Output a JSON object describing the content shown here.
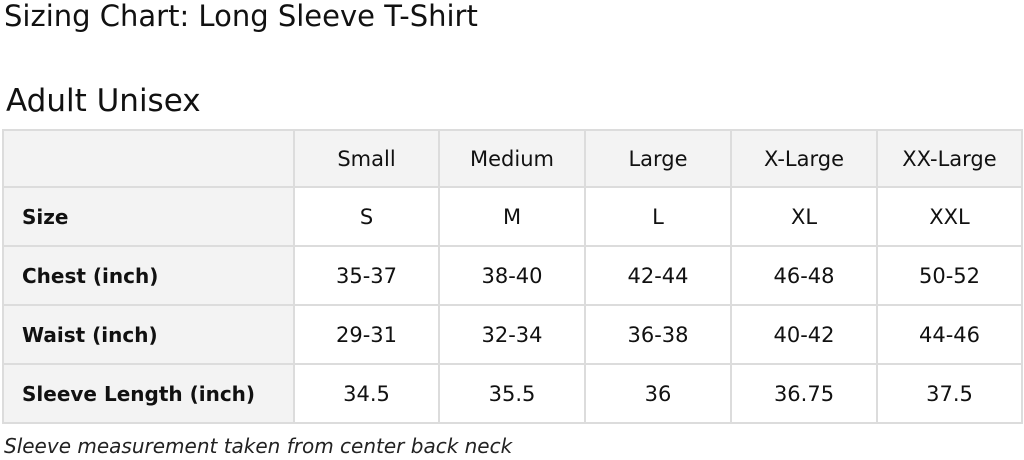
{
  "title": "Sizing Chart: Long Sleeve T-Shirt",
  "subtitle": "Adult Unisex",
  "table": {
    "columns": [
      "",
      "Small",
      "Medium",
      "Large",
      "X-Large",
      "XX-Large"
    ],
    "rows": [
      {
        "label": "Size",
        "values": [
          "S",
          "M",
          "L",
          "XL",
          "XXL"
        ]
      },
      {
        "label": "Chest (inch)",
        "values": [
          "35-37",
          "38-40",
          "42-44",
          "46-48",
          "50-52"
        ]
      },
      {
        "label": "Waist (inch)",
        "values": [
          "29-31",
          "32-34",
          "36-38",
          "40-42",
          "44-46"
        ]
      },
      {
        "label": "Sleeve Length (inch)",
        "values": [
          "34.5",
          "35.5",
          "36",
          "36.75",
          "37.5"
        ]
      }
    ]
  },
  "note": "Sleeve measurement taken from center back neck"
}
